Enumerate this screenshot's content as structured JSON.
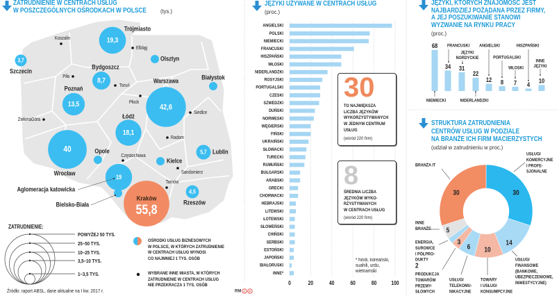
{
  "map_panel": {
    "title_lines": [
      "ZATRUDNIENIE W CENTRACH USŁUG",
      "W POSZCZEGÓLNYCH OŚRODKACH W POLSCE"
    ],
    "unit": "(tys.)",
    "legend_title": "ZATRUDNIENIE:",
    "size_classes": [
      "POWYŻEJ 50 TYS.",
      "25–50 TYS.",
      "10–25 TYS.",
      "3,5–10 TYS.",
      "1–3,5 TYS."
    ],
    "legend_center_lines": [
      "OŚRODKI USŁUG BIZNESOWYCH",
      "W POLSCE, W KTÓRYCH ZATRUDNIENIE",
      "W CENTRACH USŁUG WYNOSI",
      "CO NAJMNIEJ 1 TYS. OSÓB"
    ],
    "legend_city_lines": [
      "WYBRANE INNE MIASTA, W KTÓRYCH",
      "ZATRUDNIENIE W CENTRACH USŁUG",
      "NIE PRZEKRACZA 1 TYS. OSÓB"
    ],
    "source": "Źródło: raport ABSL, dane aktualne na I kw. 2017 r."
  },
  "languages_used_panel": {
    "title": "JĘZYKI UŻYWANE W CENTRACH USŁUG",
    "unit": "(proc.)",
    "stat_max": {
      "value": "30",
      "lines": [
        "TO NAJWIĘKSZA",
        "LICZBA JĘZYKÓW",
        "WYKORZYSTYWANYCH",
        "W JEDNYM CENTRUM",
        "USŁUG"
      ],
      "note": "(wśród 220 firm)"
    },
    "stat_avg": {
      "value": "8",
      "lines": [
        "ŚREDNIA LICZBA",
        "JĘZYKÓW WYKO-",
        "RZYSTYWANYCH",
        "W CENTRACH USŁUG"
      ],
      "note": "(wśród 220 firm)"
    },
    "footnote_lines": [
      "* hindi, koreański,",
      "suahili, urdu,",
      "wietnamski"
    ]
  },
  "languages_wanted_panel": {
    "title_lines": [
      "JĘZYKI, KTÓRYCH ZNAJOMOŚĆ JEST",
      "NAJBARDZIEJ POŻĄDANA PRZEZ FIRMY,",
      "A JEJ POSZUKIWANIE STANOWI",
      "WYZWANIE NA RYNKU PRACY"
    ],
    "unit": "(proc.)"
  },
  "structure_panel": {
    "title_lines": [
      "STRUKTURA ZATRUDNIENIA",
      "CENTRÓW USŁUG W PODZIALE",
      "NA BRANŻE ICH FIRM MACIERZYSTYCH"
    ],
    "unit": "(udział w zatrudnieniu w proc.)"
  },
  "credits": {
    "author": "RM",
    "marks": [
      "C",
      "P"
    ]
  },
  "colors": {
    "title_blue": "#1d9bd9",
    "arrow_blue": "#2a8fd3",
    "center_blue": "#3bbdf1",
    "highlight_orange": "#f28b63",
    "bar_light_blue": "#a5d6f3",
    "stat_orange": "#f08a5d",
    "stat_grey": "#c9c9c9",
    "map_grey": "#e6e6e6",
    "credit_red": "#e0413a"
  },
  "chart_data": [
    {
      "type": "bubble-map",
      "title": "ZATRUDNIENIE W CENTRACH USŁUG W POSZCZEGÓLNYCH OŚRODKACH W POLSCE",
      "unit": "tys.",
      "centers": [
        {
          "name": "Trójmiasto",
          "value": 19.3,
          "label": "19,3"
        },
        {
          "name": "Szczecin",
          "value": 3.7,
          "label": "3,7"
        },
        {
          "name": "Olsztyn",
          "value": null,
          "label": ""
        },
        {
          "name": "Bydgoszcz",
          "value": 8.7,
          "label": "8,7"
        },
        {
          "name": "Białystok",
          "value": null,
          "label": ""
        },
        {
          "name": "Poznań",
          "value": 13.5,
          "label": "13,5"
        },
        {
          "name": "Warszawa",
          "value": 42.6,
          "label": "42,6"
        },
        {
          "name": "Łódź",
          "value": 18.1,
          "label": "18,1"
        },
        {
          "name": "Wrocław",
          "value": 40,
          "label": "40"
        },
        {
          "name": "Opole",
          "value": null,
          "label": ""
        },
        {
          "name": "Kielce",
          "value": null,
          "label": ""
        },
        {
          "name": "Lublin",
          "value": 5.7,
          "label": "5,7"
        },
        {
          "name": "Aglomeracja katowicka",
          "value": 19,
          "label": "19"
        },
        {
          "name": "Rzeszów",
          "value": 4.5,
          "label": "4,5"
        },
        {
          "name": "Bielsko-Biała",
          "value": null,
          "label": ""
        },
        {
          "name": "Kraków",
          "value": 55.8,
          "label": "55,8",
          "highlight": true
        }
      ],
      "other_cities": [
        "Koszalin",
        "Elbląg",
        "Piła",
        "Toruń",
        "Płock",
        "Siedlce",
        "ZielonaGóra",
        "Radom",
        "Częstochowa",
        "Sandomierz",
        "Tarnów"
      ],
      "colors": {
        "center": "#3bbdf1",
        "highlight": "#f28b63",
        "dot": "#111111"
      }
    },
    {
      "type": "bar",
      "orientation": "horizontal",
      "title": "JĘZYKI UŻYWANE W CENTRACH USŁUG",
      "unit": "proc.",
      "categories": [
        "ANGIELSKI",
        "POLSKI",
        "NIEMIECKI",
        "FRANCUSKI",
        "HISZPAŃSKI",
        "WŁOSKI",
        "NIDERLANDZKI",
        "ROSYJSKI",
        "PORTUGALSKI",
        "CZESKI",
        "SZWEDZKI",
        "DUŃSKI",
        "NORWESKI",
        "WĘGIERSKI",
        "FIŃSKI",
        "UKRAIŃSKI",
        "SŁOWACKI",
        "TURECKI",
        "RUMUŃSKI",
        "BUŁGARSKI",
        "ARABSKI",
        "GRECKI",
        "CHORWACKI",
        "HEBRAJSKI",
        "LITEWSKI",
        "ŁOTEWSKI",
        "SŁOWEŃSKI",
        "CHIŃSKI",
        "SERBSKI",
        "ESTOŃSKI",
        "JAPOŃSKI",
        "BIAŁORUSKI",
        "INNE*"
      ],
      "values": [
        97,
        76,
        75,
        61,
        49,
        49,
        36,
        31,
        29,
        29,
        28,
        24,
        23,
        20,
        20,
        18,
        16,
        15,
        14,
        10,
        10,
        8,
        8,
        6,
        6,
        5,
        5,
        5,
        5,
        4,
        4,
        2,
        4
      ],
      "xlim": [
        0,
        100
      ],
      "xticks": [
        0,
        20,
        40,
        60,
        80,
        100
      ],
      "grid": true,
      "color": "#a5d6f3"
    },
    {
      "type": "bar",
      "orientation": "vertical",
      "title": "JĘZYKI, KTÓRYCH ZNAJOMOŚĆ JEST NAJBARDZIEJ POŻĄDANA PRZEZ FIRMY, A JEJ POSZUKIWANIE STANOWI WYZWANIE NA RYNKU PRACY",
      "unit": "proc.",
      "categories": [
        "NIEMIECKI",
        "FRANCUSKI",
        "JĘZYKI NORDYCKIE",
        "NIDERLANDZKI",
        "ANGIELSKI",
        "PORTUGALSKI",
        "WŁOSKI",
        "HISZPAŃSKI",
        "INNE JĘZYKI"
      ],
      "category_lines": [
        [
          "NIEMIECKI"
        ],
        [
          "FRANCUSKI"
        ],
        [
          "JĘZYKI",
          "NORDYCKIE"
        ],
        [
          "NIDERLANDZKI"
        ],
        [
          "ANGIELSKI"
        ],
        [
          "PORTUGALSKI"
        ],
        [
          "WŁOSKI"
        ],
        [
          "HISZPAŃSKI"
        ],
        [
          "INNE",
          "JĘZYKI"
        ]
      ],
      "values": [
        68,
        34,
        31,
        22,
        12,
        8,
        7,
        4,
        10
      ],
      "value_labels": [
        "68",
        "34",
        "31",
        "22",
        "12",
        "8",
        "7",
        "4",
        "10"
      ],
      "color": "#a5d6f3"
    },
    {
      "type": "pie",
      "variant": "donut",
      "title": "STRUKTURA ZATRUDNIENIA CENTRÓW USŁUG W PODZIALE NA BRANŻE ICH FIRM MACIERZYSTYCH",
      "unit": "udział w zatrudnieniu w proc.",
      "categories": [
        "Usługi komercyjne i profesjonalne",
        "Usługi finansowe (bankowe, ubezpieczeniowe, inwestycyjne)",
        "Towary i usługi konsumpcyjne",
        "Usługi telekomunikacyjne",
        "Produkcja towarów przemysłowych",
        "Energia, surowce i półprodukty",
        "Inne branże",
        "Branża IT"
      ],
      "label_lines": [
        [
          "USŁUGI",
          "KOMERCYJNE",
          "I PROFE-",
          "SJONALNE"
        ],
        [
          "USŁUGI",
          "FINANSOWE",
          "(BANKOWE,",
          "UBEZPIECZENIOWE,",
          "INWESTYCYJNE)"
        ],
        [
          "TOWARY",
          "I USŁUGI",
          "KONSUMPCYJNE"
        ],
        [
          "USŁUGI",
          "TELEKOMU-",
          "NIKACYJNE"
        ],
        [
          "PRODUKCJA",
          "TOWARÓW",
          "PRZEMY-",
          "SŁOWYCH"
        ],
        [
          "ENERGIA,",
          "SUROWCE",
          "I PÓŁPRO-",
          "DUKTY"
        ],
        [
          "INNE",
          "BRANŻE"
        ],
        [
          "BRANŻA IT"
        ]
      ],
      "values": [
        30,
        14,
        10,
        6,
        3,
        2,
        5,
        30
      ],
      "value_labels": [
        "30",
        "14",
        "10",
        "6",
        "3",
        "2",
        "5",
        "30"
      ],
      "colors": [
        "#2ab8ef",
        "#a9daf5",
        "#f4b8a5",
        "#a9daf5",
        "#f4b8a5",
        "#a9daf5",
        "#e3e3e3",
        "#f28c63"
      ],
      "start": "top",
      "direction": "clockwise"
    }
  ]
}
